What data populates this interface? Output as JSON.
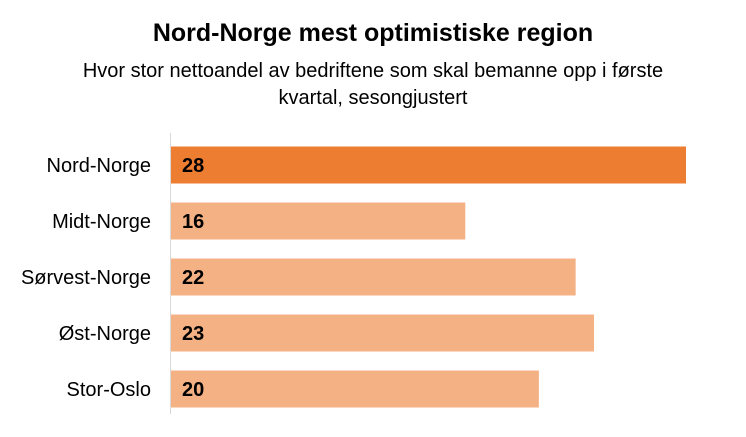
{
  "chart_data": {
    "type": "bar",
    "orientation": "horizontal",
    "title": "Nord-Norge mest optimistiske region",
    "subtitle": "Hvor stor nettoandel av bedriftene som skal bemanne opp i første kvartal, sesongjustert",
    "categories": [
      "Nord-Norge",
      "Midt-Norge",
      "Sørvest-Norge",
      "Øst-Norge",
      "Stor-Oslo"
    ],
    "values": [
      28,
      16,
      22,
      23,
      20
    ],
    "highlight_index": 0,
    "colors": {
      "highlight": "#ED7D31",
      "default": "#F4B183",
      "axis": "#D9D9D9"
    },
    "xlim": [
      0,
      28
    ],
    "xlabel": "",
    "ylabel": "",
    "grid": false,
    "legend": false
  }
}
